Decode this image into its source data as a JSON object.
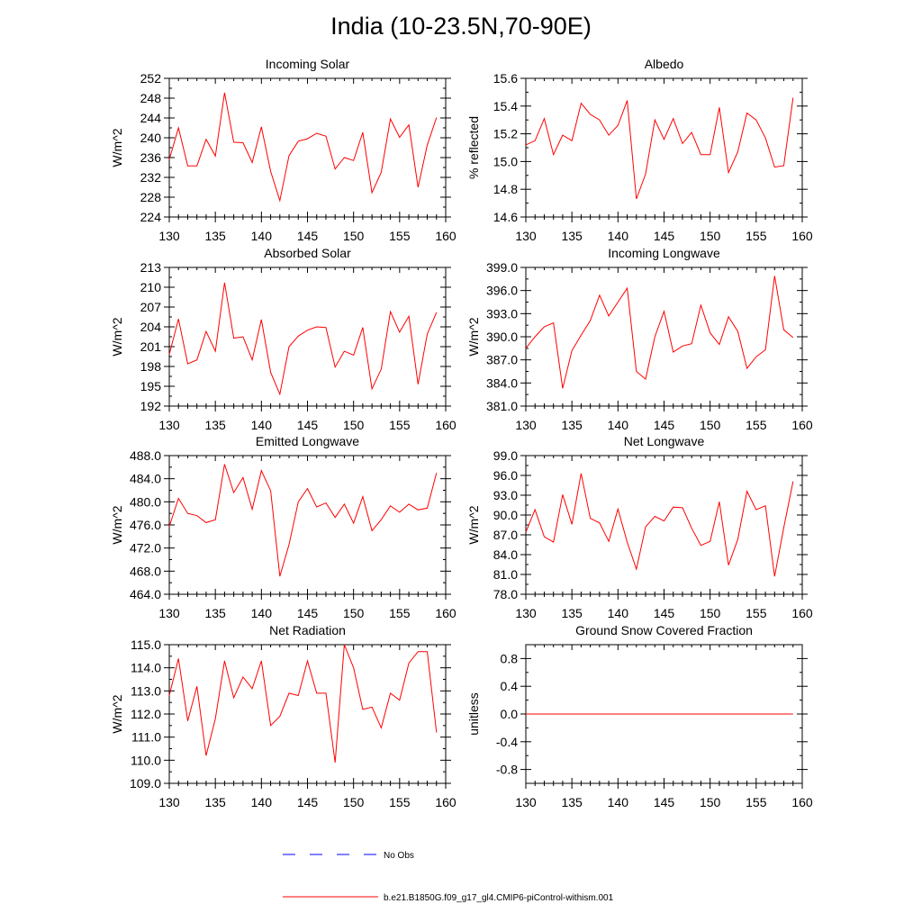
{
  "title": "India (10-23.5N,70-90E)",
  "legend": {
    "obs_label": "No Obs",
    "obs_color": "#0000ff",
    "model_label": "b.e21.B1850G.f09_g17_gl4.CMIP6-piControl-withism.001",
    "model_color": "#ff0000"
  },
  "chart_data": [
    {
      "type": "line",
      "title": "Incoming Solar",
      "ylabel": "W/m^2",
      "xlim": [
        130,
        160
      ],
      "ylim": [
        224,
        252
      ],
      "xticks": [
        "130",
        "135",
        "140",
        "145",
        "150",
        "155",
        "160"
      ],
      "yticks": [
        "224",
        "228",
        "232",
        "236",
        "240",
        "244",
        "248",
        "252"
      ],
      "x": [
        130,
        131,
        132,
        133,
        134,
        135,
        136,
        137,
        138,
        139,
        140,
        141,
        142,
        143,
        144,
        145,
        146,
        147,
        148,
        149,
        150,
        151,
        152,
        153,
        154,
        155,
        156,
        157,
        158,
        159
      ],
      "series": [
        {
          "values": [
            235.6,
            242.0,
            234.3,
            234.3,
            239.7,
            236.3,
            249.1,
            239.1,
            239.0,
            235.0,
            242.2,
            233.2,
            227.3,
            236.4,
            239.3,
            239.8,
            240.9,
            240.3,
            233.7,
            236.0,
            235.4,
            241.1,
            228.9,
            233.0,
            243.8,
            240.1,
            242.6,
            230.0,
            238.5,
            244.1
          ]
        }
      ]
    },
    {
      "type": "line",
      "title": "Albedo",
      "ylabel": "% reflected",
      "xlim": [
        130,
        160
      ],
      "ylim": [
        14.6,
        15.6
      ],
      "xticks": [
        "130",
        "135",
        "140",
        "145",
        "150",
        "155",
        "160"
      ],
      "yticks": [
        "14.6",
        "14.8",
        "15.0",
        "15.2",
        "15.4",
        "15.6"
      ],
      "x": [
        130,
        131,
        132,
        133,
        134,
        135,
        136,
        137,
        138,
        139,
        140,
        141,
        142,
        143,
        144,
        145,
        146,
        147,
        148,
        149,
        150,
        151,
        152,
        153,
        154,
        155,
        156,
        157,
        158,
        159
      ],
      "series": [
        {
          "values": [
            15.12,
            15.15,
            15.31,
            15.05,
            15.19,
            15.15,
            15.42,
            15.34,
            15.3,
            15.19,
            15.26,
            15.44,
            14.73,
            14.91,
            15.3,
            15.16,
            15.31,
            15.13,
            15.21,
            15.05,
            15.05,
            15.39,
            14.92,
            15.07,
            15.35,
            15.3,
            15.17,
            14.96,
            14.97,
            15.46
          ]
        }
      ]
    },
    {
      "type": "line",
      "title": "Absorbed Solar",
      "ylabel": "W/m^2",
      "xlim": [
        130,
        160
      ],
      "ylim": [
        192,
        213
      ],
      "xticks": [
        "130",
        "135",
        "140",
        "145",
        "150",
        "155",
        "160"
      ],
      "yticks": [
        "192",
        "195",
        "198",
        "201",
        "204",
        "207",
        "210",
        "213"
      ],
      "x": [
        130,
        131,
        132,
        133,
        134,
        135,
        136,
        137,
        138,
        139,
        140,
        141,
        142,
        143,
        144,
        145,
        146,
        147,
        148,
        149,
        150,
        151,
        152,
        153,
        154,
        155,
        156,
        157,
        158,
        159
      ],
      "series": [
        {
          "values": [
            199.8,
            205.2,
            198.4,
            199.0,
            203.3,
            200.3,
            210.7,
            202.3,
            202.5,
            199.0,
            205.1,
            197.1,
            193.8,
            201.0,
            202.6,
            203.5,
            204.0,
            203.9,
            197.9,
            200.3,
            199.7,
            203.9,
            194.6,
            197.6,
            206.3,
            203.2,
            205.6,
            195.3,
            202.9,
            206.2
          ]
        }
      ]
    },
    {
      "type": "line",
      "title": "Incoming Longwave",
      "ylabel": "W/m^2",
      "xlim": [
        130,
        160
      ],
      "ylim": [
        381.0,
        399.0
      ],
      "xticks": [
        "130",
        "135",
        "140",
        "145",
        "150",
        "155",
        "160"
      ],
      "yticks": [
        "381.0",
        "384.0",
        "387.0",
        "390.0",
        "393.0",
        "396.0",
        "399.0"
      ],
      "x": [
        130,
        131,
        132,
        133,
        134,
        135,
        136,
        137,
        138,
        139,
        140,
        141,
        142,
        143,
        144,
        145,
        146,
        147,
        148,
        149,
        150,
        151,
        152,
        153,
        154,
        155,
        156,
        157,
        158,
        159
      ],
      "series": [
        {
          "values": [
            388.5,
            390.0,
            391.3,
            391.8,
            383.3,
            388.2,
            390.2,
            392.1,
            395.4,
            392.7,
            394.5,
            396.3,
            385.5,
            384.5,
            390.0,
            393.3,
            388.0,
            388.8,
            389.1,
            394.1,
            390.5,
            389.0,
            392.6,
            390.7,
            385.9,
            387.4,
            388.3,
            397.9,
            390.9,
            389.9
          ]
        }
      ]
    },
    {
      "type": "line",
      "title": "Emitted Longwave",
      "ylabel": "W/m^2",
      "xlim": [
        130,
        160
      ],
      "ylim": [
        464.0,
        488.0
      ],
      "xticks": [
        "130",
        "135",
        "140",
        "145",
        "150",
        "155",
        "160"
      ],
      "yticks": [
        "464.0",
        "468.0",
        "472.0",
        "476.0",
        "480.0",
        "484.0",
        "488.0"
      ],
      "x": [
        130,
        131,
        132,
        133,
        134,
        135,
        136,
        137,
        138,
        139,
        140,
        141,
        142,
        143,
        144,
        145,
        146,
        147,
        148,
        149,
        150,
        151,
        152,
        153,
        154,
        155,
        156,
        157,
        158,
        159
      ],
      "series": [
        {
          "values": [
            475.7,
            480.6,
            478.0,
            477.6,
            476.4,
            476.9,
            486.5,
            481.6,
            484.2,
            478.7,
            485.4,
            481.9,
            467.1,
            472.6,
            480.0,
            482.3,
            479.1,
            479.8,
            477.3,
            479.6,
            476.3,
            480.9,
            475.0,
            476.9,
            479.3,
            478.2,
            479.6,
            478.6,
            478.9,
            485.0
          ]
        }
      ]
    },
    {
      "type": "line",
      "title": "Net Longwave",
      "ylabel": "W/m^2",
      "xlim": [
        130,
        160
      ],
      "ylim": [
        78.0,
        99.0
      ],
      "xticks": [
        "130",
        "135",
        "140",
        "145",
        "150",
        "155",
        "160"
      ],
      "yticks": [
        "78.0",
        "81.0",
        "84.0",
        "87.0",
        "90.0",
        "93.0",
        "96.0",
        "99.0"
      ],
      "x": [
        130,
        131,
        132,
        133,
        134,
        135,
        136,
        137,
        138,
        139,
        140,
        141,
        142,
        143,
        144,
        145,
        146,
        147,
        148,
        149,
        150,
        151,
        152,
        153,
        154,
        155,
        156,
        157,
        158,
        159
      ],
      "series": [
        {
          "values": [
            87.4,
            90.8,
            86.7,
            85.9,
            93.1,
            88.6,
            96.3,
            89.5,
            88.8,
            86.0,
            90.9,
            85.9,
            81.8,
            88.2,
            89.8,
            89.1,
            91.2,
            91.1,
            88.0,
            85.4,
            86.0,
            92.0,
            82.4,
            86.3,
            93.6,
            90.8,
            91.4,
            80.7,
            88.1,
            95.1
          ]
        }
      ]
    },
    {
      "type": "line",
      "title": "Net Radiation",
      "ylabel": "W/m^2",
      "xlim": [
        130,
        160
      ],
      "ylim": [
        109.0,
        115.0
      ],
      "xticks": [
        "130",
        "135",
        "140",
        "145",
        "150",
        "155",
        "160"
      ],
      "yticks": [
        "109.0",
        "110.0",
        "111.0",
        "112.0",
        "113.0",
        "114.0",
        "115.0"
      ],
      "x": [
        130,
        131,
        132,
        133,
        134,
        135,
        136,
        137,
        138,
        139,
        140,
        141,
        142,
        143,
        144,
        145,
        146,
        147,
        148,
        149,
        150,
        151,
        152,
        153,
        154,
        155,
        156,
        157,
        158,
        159
      ],
      "series": [
        {
          "values": [
            112.8,
            114.4,
            111.7,
            113.2,
            110.2,
            111.8,
            114.3,
            112.7,
            113.6,
            113.1,
            114.3,
            111.5,
            111.9,
            112.9,
            112.8,
            114.3,
            112.9,
            112.9,
            109.9,
            115.0,
            114.0,
            112.2,
            112.3,
            111.4,
            112.9,
            112.6,
            114.2,
            114.7,
            114.7,
            111.2
          ]
        }
      ]
    },
    {
      "type": "line",
      "title": "Ground Snow Covered Fraction",
      "ylabel": "unitless",
      "xlim": [
        130,
        160
      ],
      "ylim": [
        -1.0,
        1.0
      ],
      "xticks": [
        "130",
        "135",
        "140",
        "145",
        "150",
        "155",
        "160"
      ],
      "yticks": [
        "-0.8",
        "-0.4",
        "0.0",
        "0.4",
        "0.8"
      ],
      "ytick_values": [
        -0.8,
        -0.4,
        0.0,
        0.4,
        0.8
      ],
      "x": [
        130,
        131,
        132,
        133,
        134,
        135,
        136,
        137,
        138,
        139,
        140,
        141,
        142,
        143,
        144,
        145,
        146,
        147,
        148,
        149,
        150,
        151,
        152,
        153,
        154,
        155,
        156,
        157,
        158,
        159
      ],
      "series": [
        {
          "values": [
            0,
            0,
            0,
            0,
            0,
            0,
            0,
            0,
            0,
            0,
            0,
            0,
            0,
            0,
            0,
            0,
            0,
            0,
            0,
            0,
            0,
            0,
            0,
            0,
            0,
            0,
            0,
            0,
            0,
            0
          ]
        }
      ]
    }
  ]
}
